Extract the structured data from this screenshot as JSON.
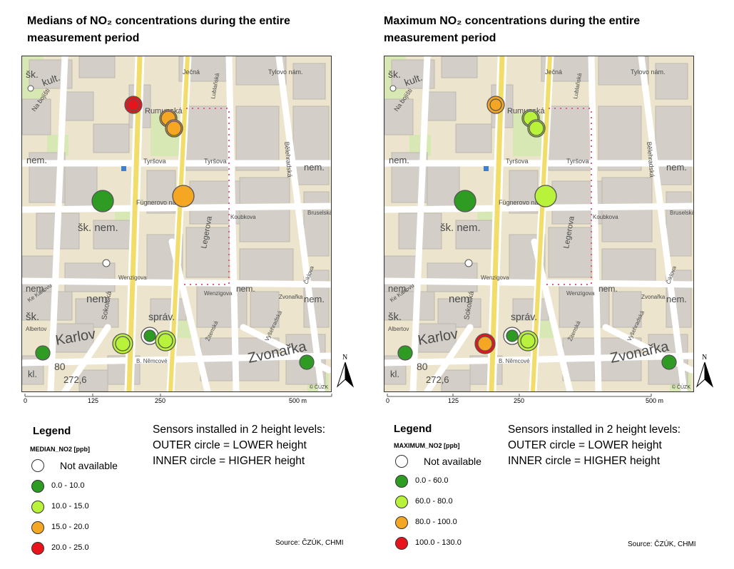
{
  "colors": {
    "na": "#ffffff",
    "c1": "#2e9c22",
    "c2": "#b9f23a",
    "c3": "#f5a623",
    "c4": "#e8141b",
    "stroke": "#555555"
  },
  "map_labels": {
    "streets": [
      "Na bojišti",
      "Rumunská",
      "Tylovo nám.",
      "Ječná",
      "Lublaňská",
      "Bělehradská",
      "Tyršova",
      "Fügnerovo nám.",
      "Koubkova",
      "Legerova",
      "Wenzigova",
      "Ke Karlovu",
      "Sokolská",
      "Albertov",
      "Žitenská",
      "Vyšehradská",
      "Zvonařka",
      "Bruselská",
      "Čiklova",
      "B. Němcové"
    ],
    "features": [
      "kult.",
      "šk.",
      "nem.",
      "šk. nem.",
      "správ.",
      "kl.",
      "Karlov",
      "Zvonařka",
      "V",
      "80",
      "272,6"
    ],
    "copyright": "© ČÚZK"
  },
  "left": {
    "title": "Medians of NO₂ concentrations during the entire measurement period",
    "legend_title": "Legend",
    "legend_field": "MEDIAN_NO2 [ppb]",
    "legend": [
      {
        "label": "Not available",
        "color": "#ffffff"
      },
      {
        "label": "0.0 - 10.0",
        "color": "#2e9c22"
      },
      {
        "label": "10.0 - 15.0",
        "color": "#b9f23a"
      },
      {
        "label": "15.0 - 20.0",
        "color": "#f5a623"
      },
      {
        "label": "20.0 - 25.0",
        "color": "#e8141b"
      }
    ],
    "sensors": [
      {
        "site": "Na bojišti",
        "outer": "c4",
        "inner": "c4"
      },
      {
        "site": "Rumunská A",
        "outer": "c3",
        "inner": "c3"
      },
      {
        "site": "Rumunská B",
        "outer": "c3",
        "inner": "c3"
      },
      {
        "site": "Legerova / Koubkova",
        "outer": "c3",
        "inner": null
      },
      {
        "site": "Fügnerovo west",
        "outer": "c1",
        "inner": null
      },
      {
        "site": "Sokolská south",
        "outer": "c2",
        "inner": "c2"
      },
      {
        "site": "Karlov A",
        "outer": "na",
        "inner": "c1"
      },
      {
        "site": "Karlov B",
        "outer": "c2",
        "inner": "c2"
      },
      {
        "site": "Albertov",
        "outer": "c1",
        "inner": null
      },
      {
        "site": "Zvonařka",
        "outer": "c1",
        "inner": null
      }
    ],
    "note": [
      "Sensors installed in 2 height levels:",
      "OUTER circle = LOWER height",
      "INNER circle = HIGHER height"
    ],
    "source": "Source: ČZÚK, CHMI",
    "scale_labels": [
      "0",
      "125",
      "250",
      "500 m"
    ],
    "north": "N"
  },
  "right": {
    "title": "Maximum NO₂ concentrations during the entire measurement period",
    "legend_title": "Legend",
    "legend_field": "MAXIMUM_NO2 [ppb]",
    "legend": [
      {
        "label": "Not available",
        "color": "#ffffff"
      },
      {
        "label": "0.0 - 60.0",
        "color": "#2e9c22"
      },
      {
        "label": "60.0 - 80.0",
        "color": "#b9f23a"
      },
      {
        "label": "80.0 - 100.0",
        "color": "#f5a623"
      },
      {
        "label": "100.0 - 130.0",
        "color": "#e8141b"
      }
    ],
    "sensors": [
      {
        "site": "Na bojišti",
        "outer": "c3",
        "inner": "c3"
      },
      {
        "site": "Rumunská A",
        "outer": "c2",
        "inner": "c2"
      },
      {
        "site": "Rumunská B",
        "outer": "c2",
        "inner": "c2"
      },
      {
        "site": "Legerova / Koubkova",
        "outer": "c2",
        "inner": null
      },
      {
        "site": "Fügnerovo west",
        "outer": "c1",
        "inner": null
      },
      {
        "site": "Sokolská south",
        "outer": "c4",
        "inner": "c3"
      },
      {
        "site": "Karlov A",
        "outer": "na",
        "inner": "c1"
      },
      {
        "site": "Karlov B",
        "outer": "c2",
        "inner": "c2"
      },
      {
        "site": "Albertov",
        "outer": "c1",
        "inner": null
      },
      {
        "site": "Zvonařka",
        "outer": "c1",
        "inner": null
      }
    ],
    "note": [
      "Sensors installed in 2 height levels:",
      "OUTER circle = LOWER height",
      "INNER circle = HIGHER height"
    ],
    "source": "Source: ČZÚK, CHMI",
    "scale_labels": [
      "0",
      "125",
      "250",
      "500 m"
    ],
    "north": "N"
  }
}
